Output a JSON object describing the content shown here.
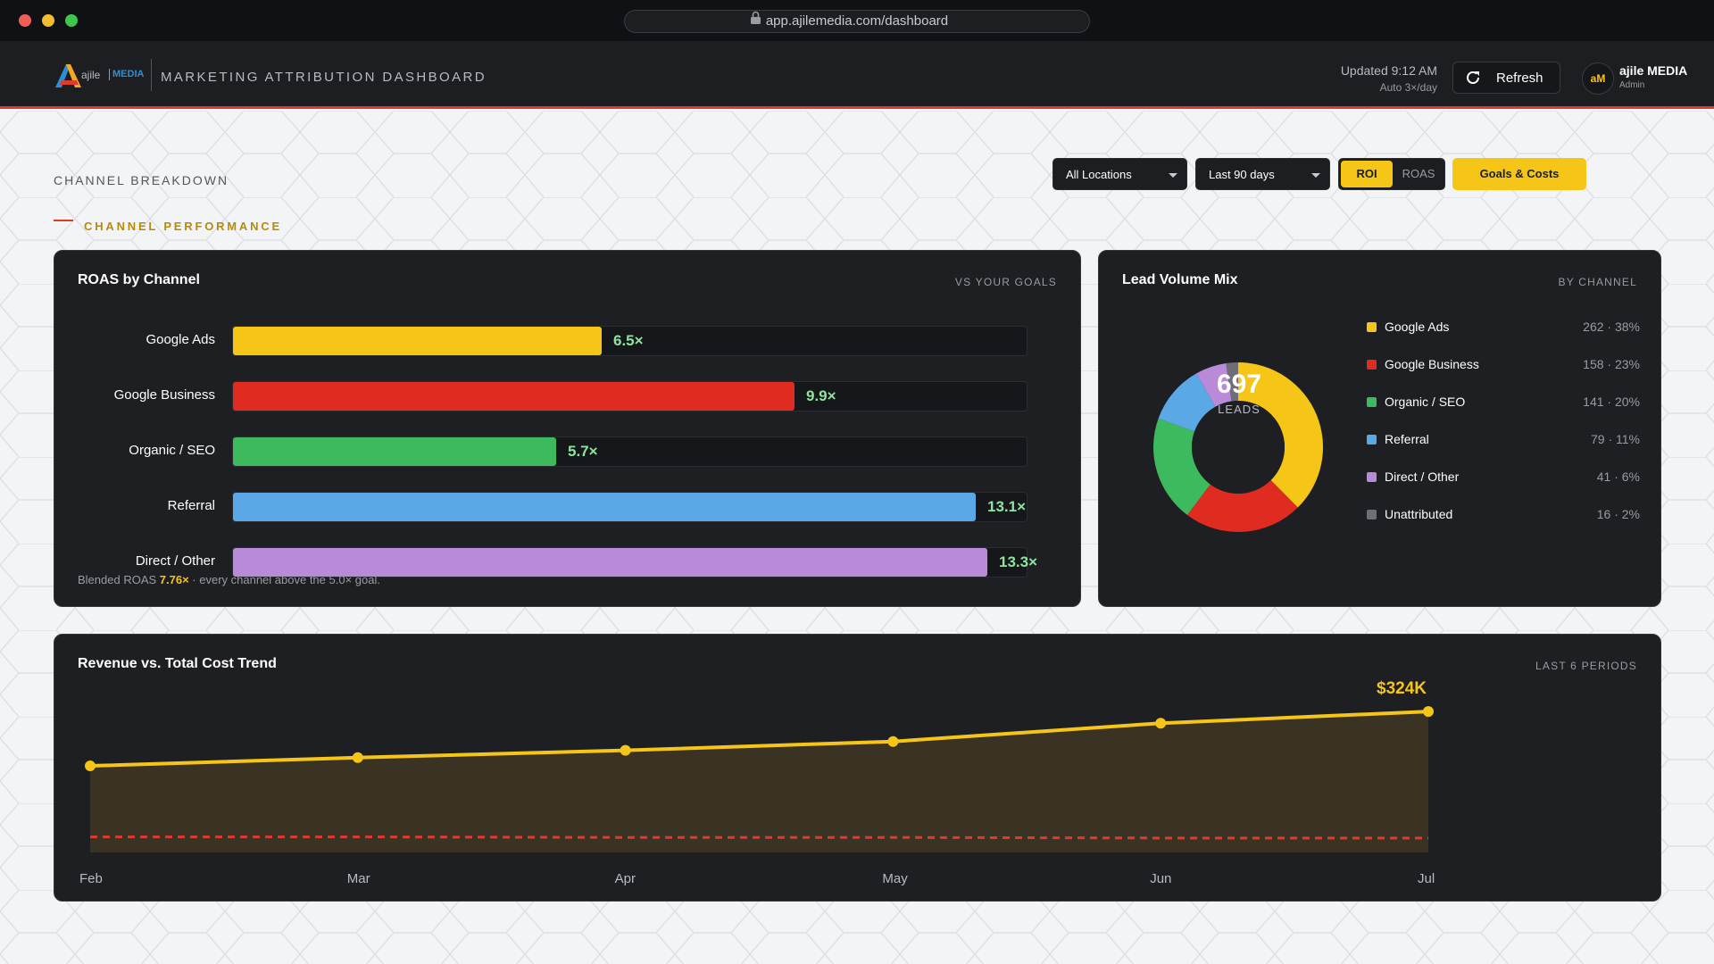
{
  "browser": {
    "url": "app.ajilemedia.com/dashboard"
  },
  "header": {
    "brand_small": "ajile",
    "brand_media": "MEDIA",
    "title": "MARKETING ATTRIBUTION DASHBOARD",
    "updated": "Updated 9:12 AM",
    "auto": "Auto 3×/day",
    "refresh_label": "Refresh",
    "avatar_initials": "aM",
    "user_name": "ajile MEDIA",
    "user_role": "Admin"
  },
  "toolbar": {
    "section": "CHANNEL BREAKDOWN",
    "subsection": "CHANNEL PERFORMANCE",
    "location": "All Locations",
    "range": "Last 90 days",
    "toggle_roi": "ROI",
    "toggle_roas": "ROAS",
    "goals_label": "Goals & Costs"
  },
  "roas_card": {
    "title": "ROAS by Channel",
    "tag": "VS YOUR GOALS",
    "footnote_prefix": "Blended ROAS ",
    "footnote_value": "7.76×",
    "footnote_suffix": " · every channel above the 5.0× goal."
  },
  "lead_card": {
    "title": "Lead Volume Mix",
    "tag": "BY CHANNEL",
    "total": "697",
    "total_label": "LEADS"
  },
  "trend_card": {
    "title": "Revenue vs. Total Cost Trend",
    "tag": "LAST 6 PERIODS",
    "peak_label": "$324K"
  },
  "colors": {
    "accent": "#f5c518",
    "brand_red": "#e03a2d",
    "google_ads": "#f5c518",
    "google_business": "#e02b20",
    "organic": "#3dba5e",
    "referral": "#5ba8e6",
    "direct": "#b98ad8",
    "unattributed": "#6e6f75"
  },
  "chart_data": [
    {
      "type": "bar",
      "title": "ROAS by Channel",
      "categories": [
        "Google Ads",
        "Google Business",
        "Organic / SEO",
        "Referral",
        "Direct / Other"
      ],
      "values": [
        6.5,
        9.9,
        5.7,
        13.1,
        13.3
      ],
      "value_labels": [
        "6.5×",
        "9.9×",
        "5.7×",
        "13.1×",
        "13.3×"
      ],
      "colors": [
        "#f5c518",
        "#e02b20",
        "#3dba5e",
        "#5ba8e6",
        "#b98ad8"
      ],
      "xlim": [
        0,
        13.1
      ]
    },
    {
      "type": "pie",
      "title": "Lead Volume Mix",
      "categories": [
        "Google Ads",
        "Google Business",
        "Organic / SEO",
        "Referral",
        "Direct / Other",
        "Unattributed"
      ],
      "values": [
        262,
        158,
        141,
        79,
        41,
        16
      ],
      "stat_labels": [
        "262 · 38%",
        "158 · 23%",
        "141 · 20%",
        "79 · 11%",
        "41 · 6%",
        "16 · 2%"
      ],
      "colors": [
        "#f5c518",
        "#e02b20",
        "#3dba5e",
        "#5ba8e6",
        "#b98ad8",
        "#6e6f75"
      ]
    },
    {
      "type": "area",
      "title": "Revenue vs. Total Cost Trend",
      "categories": [
        "Feb",
        "Mar",
        "Apr",
        "May",
        "Jun",
        "Jul"
      ],
      "series": [
        {
          "values": [
            226,
            241,
            254,
            270,
            303,
            324
          ],
          "color": "#f5c518"
        },
        {
          "values": [
            98,
            98,
            97,
            97,
            96,
            96
          ],
          "color": "#e03a2d"
        }
      ],
      "ylim": [
        70,
        350
      ]
    }
  ]
}
